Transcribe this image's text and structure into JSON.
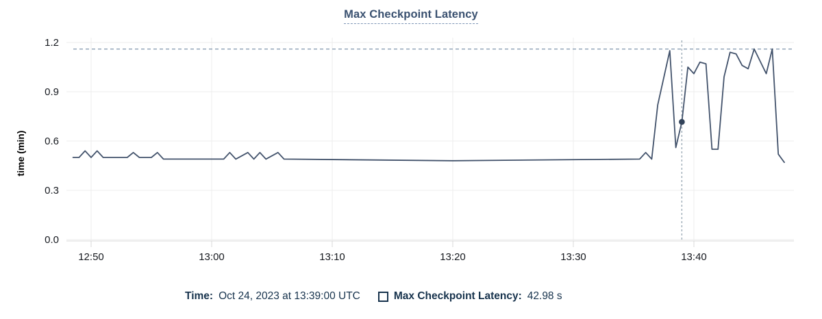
{
  "chart": {
    "title": "Max Checkpoint Latency",
    "y_axis_label": "time (min)",
    "colors": {
      "title": "#3a5170",
      "line": "#42526b",
      "selected_point": "#32435a",
      "max_reference_dash": "#7d93aa",
      "cursor_dash": "#90a0ad",
      "gridline": "#ececec",
      "axis_line": "#d9d9d9",
      "tick_label": "#16191f",
      "legend_text": "#16324c"
    }
  },
  "tooltip": {
    "time_label": "Time:",
    "time_value": "Oct 24, 2023 at 13:39:00 UTC",
    "series_label": "Max Checkpoint Latency:",
    "series_value": "42.98 s"
  },
  "chart_data": {
    "type": "line",
    "title": "Max Checkpoint Latency",
    "xlabel": "",
    "ylabel": "time (min)",
    "ylim": [
      0,
      1.2
    ],
    "yticks": [
      "0.0",
      "0.3",
      "0.6",
      "0.9",
      "1.2"
    ],
    "xticks": [
      "12:50",
      "13:00",
      "13:10",
      "13:20",
      "13:30",
      "13:40"
    ],
    "grid": true,
    "legend_position": "bottom",
    "max_reference_line_min": 1.16,
    "cursor": {
      "time": "13:39:00",
      "time_display": "Oct 24, 2023 at 13:39:00 UTC",
      "value_s": 42.98,
      "value_display": "42.98 s"
    },
    "series": [
      {
        "name": "Max Checkpoint Latency",
        "color": "#42526b",
        "unit": "min",
        "points": [
          [
            "12:48:30",
            0.5
          ],
          [
            "12:49:00",
            0.5
          ],
          [
            "12:49:30",
            0.54
          ],
          [
            "12:50:00",
            0.5
          ],
          [
            "12:50:30",
            0.54
          ],
          [
            "12:51:00",
            0.5
          ],
          [
            "12:53:00",
            0.5
          ],
          [
            "12:53:30",
            0.53
          ],
          [
            "12:54:00",
            0.5
          ],
          [
            "12:55:00",
            0.5
          ],
          [
            "12:55:30",
            0.53
          ],
          [
            "12:56:00",
            0.49
          ],
          [
            "13:01:00",
            0.49
          ],
          [
            "13:01:30",
            0.53
          ],
          [
            "13:02:00",
            0.49
          ],
          [
            "13:03:00",
            0.53
          ],
          [
            "13:03:30",
            0.49
          ],
          [
            "13:04:00",
            0.53
          ],
          [
            "13:04:30",
            0.49
          ],
          [
            "13:05:30",
            0.53
          ],
          [
            "13:06:00",
            0.49
          ],
          [
            "13:20:00",
            0.48
          ],
          [
            "13:35:30",
            0.49
          ],
          [
            "13:36:00",
            0.53
          ],
          [
            "13:36:30",
            0.49
          ],
          [
            "13:37:00",
            0.82
          ],
          [
            "13:38:00",
            1.15
          ],
          [
            "13:38:30",
            0.56
          ],
          [
            "13:39:00",
            0.716
          ],
          [
            "13:39:30",
            1.05
          ],
          [
            "13:40:00",
            1.01
          ],
          [
            "13:40:30",
            1.08
          ],
          [
            "13:41:00",
            1.07
          ],
          [
            "13:41:30",
            0.55
          ],
          [
            "13:42:00",
            0.55
          ],
          [
            "13:42:30",
            0.99
          ],
          [
            "13:43:00",
            1.14
          ],
          [
            "13:43:30",
            1.13
          ],
          [
            "13:44:00",
            1.06
          ],
          [
            "13:44:30",
            1.04
          ],
          [
            "13:45:00",
            1.16
          ],
          [
            "13:46:00",
            1.01
          ],
          [
            "13:46:30",
            1.16
          ],
          [
            "13:47:00",
            0.52
          ],
          [
            "13:47:30",
            0.47
          ]
        ]
      }
    ]
  }
}
